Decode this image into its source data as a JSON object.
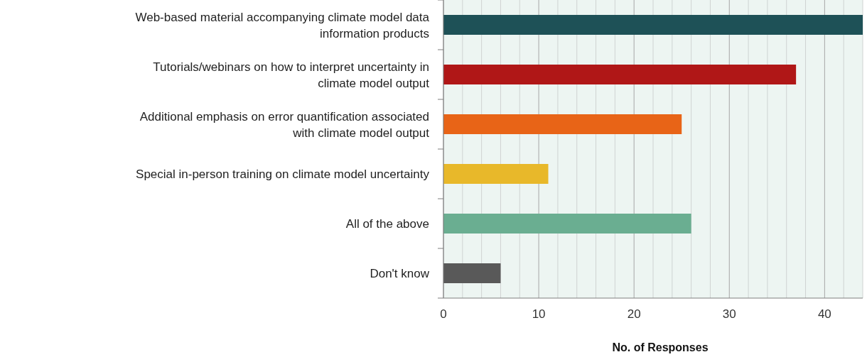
{
  "chart_data": {
    "type": "bar",
    "orientation": "horizontal",
    "xlabel": "No. of Responses",
    "categories": [
      "Web-based material accompanying climate model data information products",
      "Tutorials/webinars on how to interpret uncertainty in climate model output",
      "Additional emphasis on error quantification associated with climate model output",
      "Special in-person training on climate model uncertainty",
      "All of the above",
      "Don't know"
    ],
    "values": [
      44,
      37,
      25,
      11,
      26,
      6
    ],
    "colors": [
      "#1e5157",
      "#b01717",
      "#e86417",
      "#e8b82a",
      "#6aae91",
      "#595959"
    ],
    "xlim": [
      0,
      44
    ],
    "xticks": [
      0,
      {
        "value": 2,
        "label": null
      },
      {
        "value": 4,
        "label": null
      },
      {
        "value": 6,
        "label": null
      },
      {
        "value": 8,
        "label": null
      },
      10,
      {
        "value": 12,
        "label": null
      },
      {
        "value": 14,
        "label": null
      },
      {
        "value": 16,
        "label": null
      },
      {
        "value": 18,
        "label": null
      },
      20,
      {
        "value": 22,
        "label": null
      },
      {
        "value": 24,
        "label": null
      },
      {
        "value": 26,
        "label": null
      },
      {
        "value": 28,
        "label": null
      },
      30,
      {
        "value": 32,
        "label": null
      },
      {
        "value": 34,
        "label": null
      },
      {
        "value": 36,
        "label": null
      },
      {
        "value": 38,
        "label": null
      },
      40,
      {
        "value": 42,
        "label": null
      },
      {
        "value": 44,
        "label": null
      }
    ],
    "grid": "x"
  }
}
